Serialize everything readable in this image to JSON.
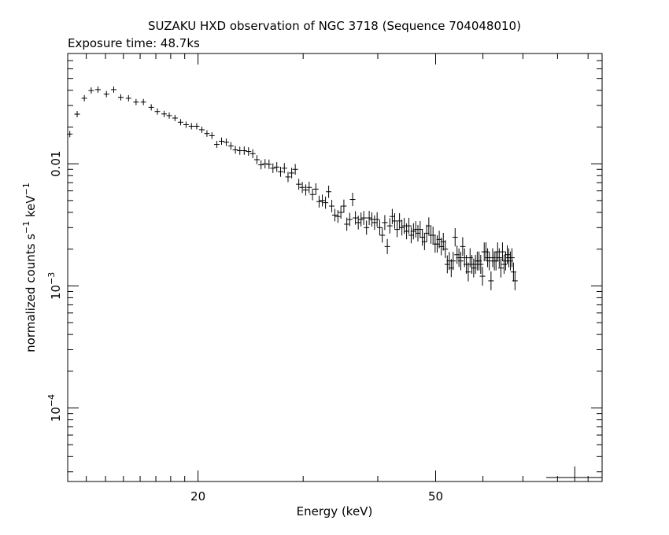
{
  "chart_data": {
    "type": "scatter",
    "title": "SUZAKU HXD observation of NGC 3718 (Sequence 704048010)",
    "subtitle": "Exposure time: 48.7ks",
    "xlabel": "Energy (keV)",
    "ylabel_main": "normalized counts s",
    "ylabel_unit": " keV",
    "ylabel_exp": "−1",
    "x_scale": "log",
    "y_scale": "log",
    "xlim": [
      12.1,
      95
    ],
    "ylim": [
      2.5e-05,
      0.08
    ],
    "x_ticks": [
      {
        "value": 20,
        "label": "20"
      },
      {
        "value": 50,
        "label": "50"
      }
    ],
    "y_ticks": [
      {
        "value": 0.0001,
        "base": "10",
        "exp": "−4"
      },
      {
        "value": 0.001,
        "base": "10",
        "exp": "−3"
      },
      {
        "value": 0.01,
        "label": "0.01"
      }
    ],
    "legend": "none",
    "grid": false,
    "series": [
      {
        "points": [
          [
            12.2,
            0.0175
          ],
          [
            12.55,
            0.0255
          ],
          [
            12.9,
            0.0344
          ],
          [
            13.25,
            0.0398
          ],
          [
            13.6,
            0.0405
          ],
          [
            14.05,
            0.0372
          ],
          [
            14.45,
            0.0405
          ],
          [
            14.85,
            0.035
          ],
          [
            15.3,
            0.0344
          ],
          [
            15.75,
            0.032
          ],
          [
            16.2,
            0.032
          ],
          [
            16.7,
            0.029
          ],
          [
            17.1,
            0.0268
          ],
          [
            17.55,
            0.0256
          ],
          [
            17.9,
            0.0248
          ],
          [
            18.3,
            0.0237
          ],
          [
            18.7,
            0.0219
          ],
          [
            19.1,
            0.0209
          ],
          [
            19.5,
            0.0203
          ],
          [
            19.9,
            0.0203
          ],
          [
            20.3,
            0.019
          ],
          [
            20.7,
            0.0177
          ],
          [
            21.1,
            0.017
          ],
          [
            21.5,
            0.0144
          ],
          [
            21.9,
            0.0153
          ],
          [
            22.3,
            0.015
          ],
          [
            22.7,
            0.014
          ],
          [
            23.1,
            0.013
          ],
          [
            23.5,
            0.0128
          ],
          [
            23.9,
            0.0128
          ],
          [
            24.3,
            0.0126
          ],
          [
            24.7,
            0.0121
          ],
          [
            25.1,
            0.0108
          ],
          [
            25.5,
            0.0098
          ],
          [
            25.9,
            0.01
          ],
          [
            26.3,
            0.0099
          ],
          [
            26.7,
            0.0092
          ],
          [
            27.1,
            0.0094
          ],
          [
            27.5,
            0.0086
          ],
          [
            27.9,
            0.0092
          ],
          [
            28.3,
            0.0078
          ],
          [
            28.7,
            0.0084
          ],
          [
            29.1,
            0.009
          ],
          [
            29.5,
            0.0068
          ],
          [
            29.9,
            0.0064
          ],
          [
            30.3,
            0.0061
          ],
          [
            30.7,
            0.0064
          ],
          [
            31.1,
            0.0056
          ],
          [
            31.5,
            0.0062
          ],
          [
            31.9,
            0.0049
          ],
          [
            32.3,
            0.005
          ],
          [
            32.7,
            0.0048
          ],
          [
            33.1,
            0.0059
          ],
          [
            33.5,
            0.0045
          ],
          [
            33.9,
            0.0038
          ],
          [
            34.3,
            0.0037
          ],
          [
            34.7,
            0.004
          ],
          [
            35.1,
            0.0045
          ],
          [
            35.5,
            0.0032
          ],
          [
            35.9,
            0.0035
          ],
          [
            36.3,
            0.0051
          ],
          [
            36.7,
            0.0036
          ],
          [
            37.1,
            0.0033
          ],
          [
            37.5,
            0.0035
          ],
          [
            37.9,
            0.0036
          ],
          [
            38.3,
            0.003
          ],
          [
            38.7,
            0.0036
          ],
          [
            39.1,
            0.0035
          ],
          [
            39.5,
            0.0033
          ],
          [
            39.9,
            0.0035
          ],
          [
            40.3,
            0.003
          ],
          [
            40.7,
            0.0026
          ],
          [
            41.1,
            0.0033
          ],
          [
            41.5,
            0.0021
          ],
          [
            41.9,
            0.0031
          ],
          [
            42.3,
            0.0037
          ],
          [
            42.7,
            0.0034
          ],
          [
            43.1,
            0.0029
          ],
          [
            43.5,
            0.0034
          ],
          [
            43.9,
            0.003
          ],
          [
            44.3,
            0.0031
          ],
          [
            44.7,
            0.0028
          ],
          [
            45.1,
            0.0031
          ],
          [
            45.5,
            0.0026
          ],
          [
            45.9,
            0.0028
          ],
          [
            46.3,
            0.0029
          ],
          [
            46.7,
            0.0027
          ],
          [
            47.1,
            0.0029
          ],
          [
            47.5,
            0.0025
          ],
          [
            47.9,
            0.0023
          ],
          [
            48.3,
            0.0027
          ],
          [
            48.7,
            0.0031
          ],
          [
            49.1,
            0.0026
          ],
          [
            49.5,
            0.0026
          ],
          [
            49.9,
            0.0022
          ],
          [
            50.3,
            0.0022
          ],
          [
            50.7,
            0.0024
          ],
          [
            51.1,
            0.0021
          ],
          [
            51.5,
            0.0023
          ],
          [
            51.9,
            0.002
          ],
          [
            52.3,
            0.0015
          ],
          [
            52.7,
            0.0016
          ],
          [
            53.1,
            0.0014
          ],
          [
            53.5,
            0.0016
          ],
          [
            53.9,
            0.0025
          ],
          [
            54.3,
            0.0018
          ],
          [
            54.7,
            0.0017
          ],
          [
            55.1,
            0.0016
          ],
          [
            55.5,
            0.0021
          ],
          [
            55.9,
            0.0017
          ],
          [
            56.3,
            0.0015
          ],
          [
            56.7,
            0.0013
          ],
          [
            57.1,
            0.0017
          ],
          [
            57.5,
            0.0015
          ],
          [
            57.9,
            0.0014
          ],
          [
            58.3,
            0.0015
          ],
          [
            58.7,
            0.0016
          ],
          [
            59.1,
            0.0016
          ],
          [
            59.5,
            0.0015
          ],
          [
            59.9,
            0.0012
          ],
          [
            60.3,
            0.0019
          ],
          [
            60.7,
            0.0019
          ],
          [
            61.1,
            0.0017
          ],
          [
            61.5,
            0.0016
          ],
          [
            61.9,
            0.0011
          ],
          [
            62.3,
            0.0017
          ],
          [
            62.7,
            0.0016
          ],
          [
            63.1,
            0.0016
          ],
          [
            63.5,
            0.0019
          ],
          [
            63.9,
            0.0017
          ],
          [
            64.3,
            0.0014
          ],
          [
            64.7,
            0.0019
          ],
          [
            65.1,
            0.0015
          ],
          [
            65.5,
            0.0016
          ],
          [
            65.9,
            0.0018
          ],
          [
            66.3,
            0.0017
          ],
          [
            66.7,
            0.0016
          ],
          [
            67.1,
            0.0017
          ],
          [
            67.5,
            0.0013
          ],
          [
            67.9,
            0.0011
          ]
        ]
      },
      {
        "points": [
          [
            85.5,
            2.7e-05
          ]
        ]
      }
    ]
  }
}
